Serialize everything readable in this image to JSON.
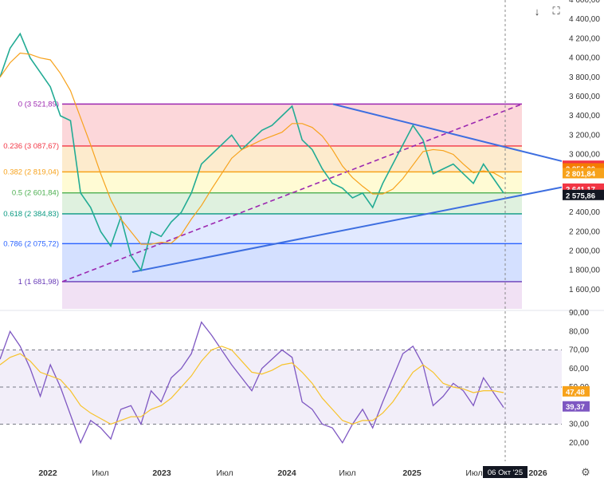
{
  "chart_data": {
    "type": "line",
    "x_ticks": [
      "2022",
      "Июл",
      "2023",
      "Июл",
      "2024",
      "Июл",
      "2025",
      "Июл",
      "2026"
    ],
    "crosshair_date": "06 Окт '25",
    "price_axis": {
      "ylim": [
        1400,
        4600
      ],
      "ticks": [
        "4 600,00",
        "4 400,00",
        "4 200,00",
        "4 000,00",
        "3 800,00",
        "3 600,00",
        "3 400,00",
        "3 200,00",
        "3 000,00",
        "2 800,00",
        "2 600,00",
        "2 400,00",
        "2 200,00",
        "2 000,00",
        "1 800,00",
        "1 600,00"
      ]
    },
    "fibonacci": [
      {
        "label": "0 (3 521,89)",
        "value": 3521.89,
        "color": "#9c27b0"
      },
      {
        "label": "0.236 (3 087,67)",
        "value": 3087.67,
        "color": "#f23645"
      },
      {
        "label": "0.382 (2 819,04)",
        "value": 2819.04,
        "color": "#f7a21b"
      },
      {
        "label": "0.5 (2 601,84)",
        "value": 2601.84,
        "color": "#4caf50"
      },
      {
        "label": "0.618 (2 384,83)",
        "value": 2384.83,
        "color": "#089981"
      },
      {
        "label": "0.786 (2 075,72)",
        "value": 2075.72,
        "color": "#2962ff"
      },
      {
        "label": "1 (1 681,98)",
        "value": 1681.98,
        "color": "#673ab7"
      }
    ],
    "price_badges": [
      {
        "text": "2 878,63",
        "value": 2878.63,
        "color": "#f23645"
      },
      {
        "text": "2 875,59",
        "value": 2875.59,
        "color": "#f23645"
      },
      {
        "text": "2 851,20",
        "value": 2851.2,
        "color": "#f57c00"
      },
      {
        "text": "2 801,84",
        "value": 2801.84,
        "color": "#f7a21b"
      },
      {
        "text": "2 641,17",
        "value": 2641.17,
        "color": "#f23645"
      },
      {
        "text": "2 575,86",
        "value": 2575.86,
        "color": "#131722"
      }
    ],
    "price_series": {
      "t": [
        0,
        0.02,
        0.04,
        0.06,
        0.08,
        0.1,
        0.12,
        0.14,
        0.16,
        0.18,
        0.2,
        0.22,
        0.24,
        0.26,
        0.28,
        0.3,
        0.32,
        0.34,
        0.36,
        0.38,
        0.4,
        0.42,
        0.44,
        0.46,
        0.48,
        0.5,
        0.52,
        0.54,
        0.56,
        0.58,
        0.6,
        0.62,
        0.64,
        0.66,
        0.68,
        0.7,
        0.72,
        0.74,
        0.76,
        0.78,
        0.8,
        0.82,
        0.84,
        0.86,
        0.88,
        0.9,
        0.92,
        0.94,
        0.96,
        0.98,
        1.0
      ],
      "close": [
        3800,
        4100,
        4250,
        4000,
        3850,
        3700,
        3400,
        3350,
        2600,
        2450,
        2200,
        2050,
        2350,
        1950,
        1800,
        2200,
        2150,
        2300,
        2400,
        2600,
        2900,
        3000,
        3100,
        3200,
        3050,
        3150,
        3250,
        3300,
        3400,
        3500,
        3150,
        3050,
        2850,
        2700,
        2650,
        2550,
        2600,
        2450,
        2700,
        2900,
        3100,
        3300,
        3150,
        2800,
        2850,
        2900,
        2800,
        2700,
        2900,
        2750,
        2600
      ]
    },
    "rsi_axis": {
      "ylim": [
        10,
        90
      ],
      "ticks": [
        "90,00",
        "80,00",
        "70,00",
        "60,00",
        "50,00",
        "40,00",
        "30,00",
        "20,00"
      ],
      "levels": [
        70,
        50,
        30
      ]
    },
    "rsi_badges": [
      {
        "text": "47,48",
        "value": 47.48,
        "color": "#f7a21b"
      },
      {
        "text": "39,37",
        "value": 39.37,
        "color": "#7e57c2"
      }
    ],
    "rsi_series": {
      "t": [
        0,
        0.02,
        0.04,
        0.06,
        0.08,
        0.1,
        0.12,
        0.14,
        0.16,
        0.18,
        0.2,
        0.22,
        0.24,
        0.26,
        0.28,
        0.3,
        0.32,
        0.34,
        0.36,
        0.38,
        0.4,
        0.42,
        0.44,
        0.46,
        0.48,
        0.5,
        0.52,
        0.54,
        0.56,
        0.58,
        0.6,
        0.62,
        0.64,
        0.66,
        0.68,
        0.7,
        0.72,
        0.74,
        0.76,
        0.78,
        0.8,
        0.82,
        0.84,
        0.86,
        0.88,
        0.9,
        0.92,
        0.94,
        0.96,
        0.98,
        1.0
      ],
      "rsi": [
        65,
        80,
        72,
        60,
        45,
        62,
        50,
        35,
        20,
        32,
        28,
        22,
        38,
        40,
        30,
        48,
        42,
        55,
        60,
        68,
        85,
        78,
        70,
        62,
        55,
        48,
        60,
        65,
        70,
        66,
        42,
        38,
        30,
        28,
        20,
        30,
        38,
        28,
        42,
        55,
        68,
        72,
        62,
        40,
        45,
        52,
        48,
        40,
        55,
        47,
        39
      ],
      "sma": [
        62,
        66,
        68,
        64,
        58,
        56,
        54,
        48,
        40,
        36,
        33,
        30,
        32,
        34,
        34,
        38,
        40,
        44,
        50,
        56,
        64,
        70,
        72,
        70,
        64,
        58,
        57,
        59,
        62,
        63,
        58,
        52,
        44,
        38,
        32,
        30,
        32,
        32,
        36,
        42,
        50,
        58,
        62,
        58,
        52,
        50,
        49,
        47,
        48,
        48,
        47
      ]
    }
  },
  "toolbar": {
    "down_icon": "arrow-down-icon",
    "fullscreen_icon": "fullscreen-icon",
    "settings_icon": "settings-gear-icon"
  }
}
